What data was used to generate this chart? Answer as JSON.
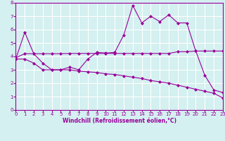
{
  "line1_x": [
    0,
    1,
    2,
    3,
    4,
    5,
    6,
    7,
    8,
    9,
    10,
    11,
    12,
    13,
    14,
    15,
    16,
    17,
    18,
    19,
    20,
    21,
    22,
    23
  ],
  "line1_y": [
    3.8,
    5.8,
    4.2,
    3.5,
    3.0,
    3.0,
    3.2,
    3.0,
    3.8,
    4.3,
    4.25,
    4.3,
    5.6,
    7.8,
    6.5,
    7.0,
    6.6,
    7.1,
    6.5,
    6.5,
    4.4,
    2.6,
    1.5,
    1.3
  ],
  "line2_x": [
    0,
    1,
    2,
    3,
    4,
    5,
    6,
    7,
    8,
    9,
    10,
    11,
    12,
    13,
    14,
    15,
    16,
    17,
    18,
    19,
    20,
    21,
    22,
    23
  ],
  "line2_y": [
    3.9,
    4.2,
    4.2,
    4.2,
    4.2,
    4.2,
    4.22,
    4.22,
    4.22,
    4.22,
    4.22,
    4.22,
    4.22,
    4.22,
    4.22,
    4.22,
    4.22,
    4.22,
    4.35,
    4.35,
    4.4,
    4.4,
    4.4,
    4.4
  ],
  "line3_x": [
    0,
    1,
    2,
    3,
    4,
    5,
    6,
    7,
    8,
    9,
    10,
    11,
    12,
    13,
    14,
    15,
    16,
    17,
    18,
    19,
    20,
    21,
    22,
    23
  ],
  "line3_y": [
    3.8,
    3.8,
    3.5,
    3.0,
    3.0,
    3.0,
    3.0,
    2.9,
    2.85,
    2.8,
    2.7,
    2.65,
    2.55,
    2.45,
    2.35,
    2.2,
    2.1,
    2.0,
    1.85,
    1.7,
    1.55,
    1.4,
    1.25,
    0.9
  ],
  "line_color": "#990099",
  "bg_color": "#d4f0f0",
  "grid_color": "#ffffff",
  "xlabel": "Windchill (Refroidissement éolien,°C)",
  "xlim": [
    0,
    23
  ],
  "ylim": [
    0,
    8
  ],
  "xticks": [
    0,
    1,
    2,
    3,
    4,
    5,
    6,
    7,
    8,
    9,
    10,
    11,
    12,
    13,
    14,
    15,
    16,
    17,
    18,
    19,
    20,
    21,
    22,
    23
  ],
  "yticks": [
    0,
    1,
    2,
    3,
    4,
    5,
    6,
    7,
    8
  ],
  "marker": "D",
  "markersize": 2,
  "linewidth": 0.8,
  "tick_fontsize": 5,
  "xlabel_fontsize": 5.5
}
